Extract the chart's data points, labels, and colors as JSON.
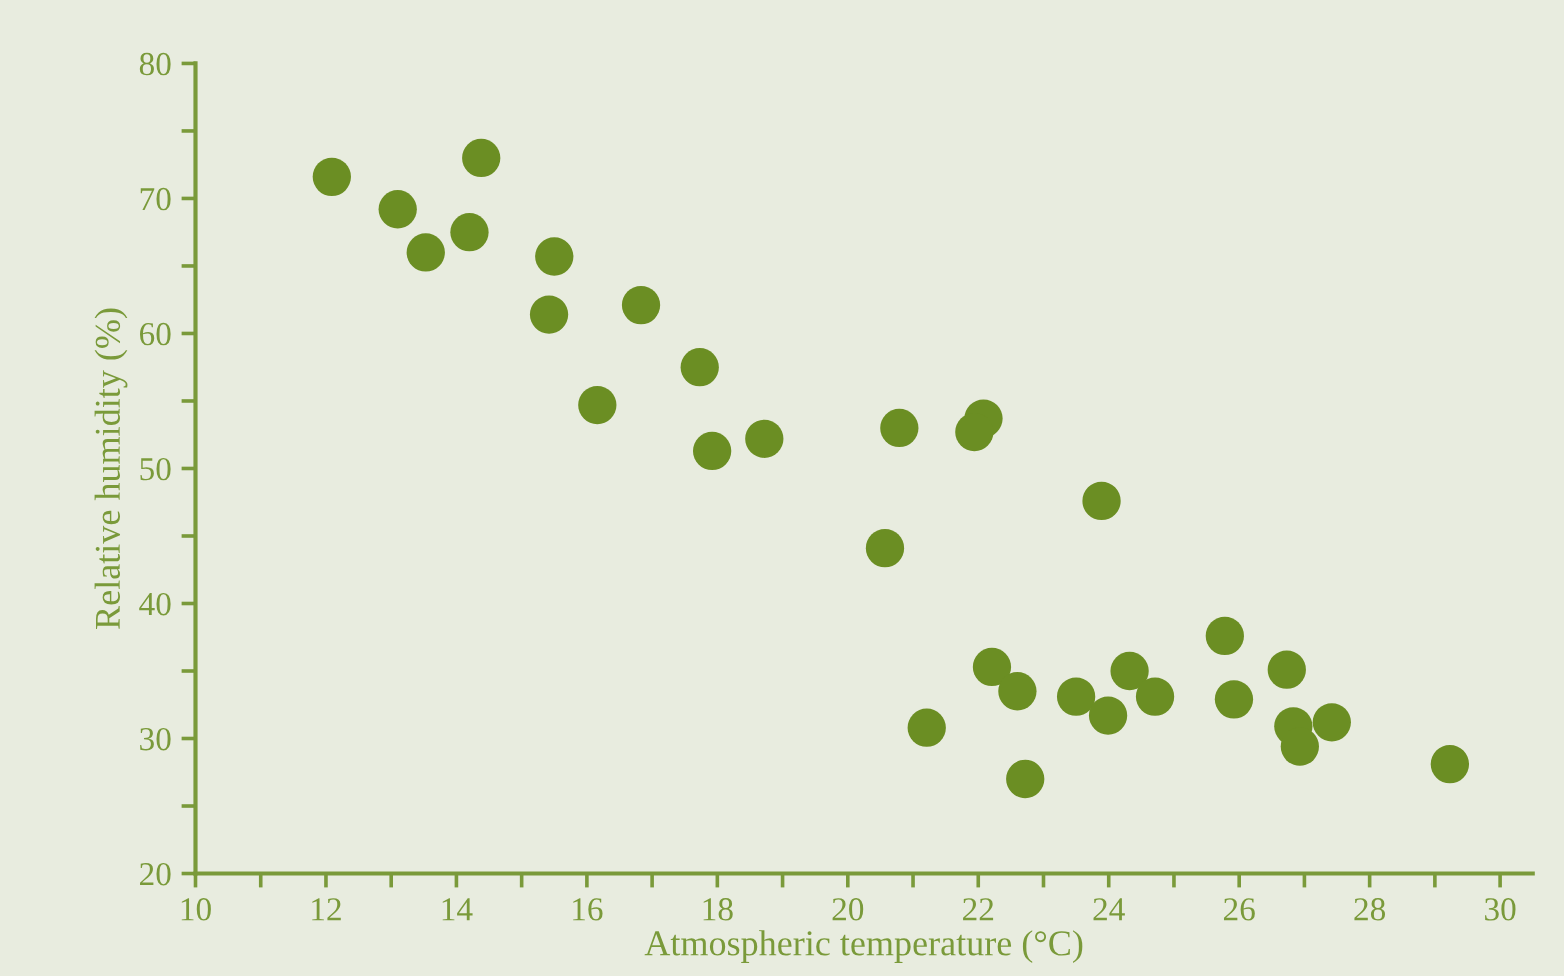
{
  "chart_data": {
    "type": "scatter",
    "xlabel": "Atmospheric temperature (°C)",
    "ylabel": "Relative humidity (%)",
    "x": [
      12.09,
      13.1,
      13.53,
      14.2,
      14.38,
      15.5,
      15.42,
      16.83,
      16.16,
      17.73,
      17.92,
      18.72,
      20.79,
      22.08,
      21.94,
      23.89,
      20.57,
      25.78,
      22.21,
      22.6,
      23.5,
      23.99,
      24.32,
      24.71,
      25.92,
      26.73,
      26.83,
      26.93,
      27.42,
      21.21,
      22.72,
      29.23
    ],
    "values": [
      71.6,
      69.2,
      66.0,
      67.5,
      73.0,
      65.7,
      61.4,
      62.1,
      54.7,
      57.5,
      51.3,
      52.2,
      53.0,
      53.7,
      52.7,
      47.6,
      44.1,
      37.6,
      35.3,
      33.5,
      33.1,
      31.7,
      35.0,
      33.1,
      32.9,
      35.1,
      30.9,
      29.4,
      31.2,
      30.8,
      27.0,
      28.1
    ],
    "color": "#6b8e23",
    "marker": "circle",
    "grid": false,
    "legend": false,
    "xlim": [
      10,
      30.5
    ],
    "ylim": [
      20,
      80
    ],
    "xticks": [
      10,
      {
        "value": 11,
        "label": null
      },
      12,
      {
        "value": 13,
        "label": null
      },
      14,
      {
        "value": 15,
        "label": null
      },
      16,
      {
        "value": 17,
        "label": null
      },
      18,
      {
        "value": 19,
        "label": null
      },
      20,
      {
        "value": 21,
        "label": null
      },
      22,
      {
        "value": 23,
        "label": null
      },
      24,
      {
        "value": 25,
        "label": null
      },
      26,
      {
        "value": 27,
        "label": null
      },
      28,
      {
        "value": 29,
        "label": null
      },
      30
    ],
    "yticks": [
      20,
      {
        "value": 25,
        "label": null
      },
      30,
      {
        "value": 35,
        "label": null
      },
      40,
      {
        "value": 45,
        "label": null
      },
      50,
      {
        "value": 55,
        "label": null
      },
      60,
      {
        "value": 65,
        "label": null
      },
      70,
      {
        "value": 75,
        "label": null
      },
      80
    ]
  }
}
